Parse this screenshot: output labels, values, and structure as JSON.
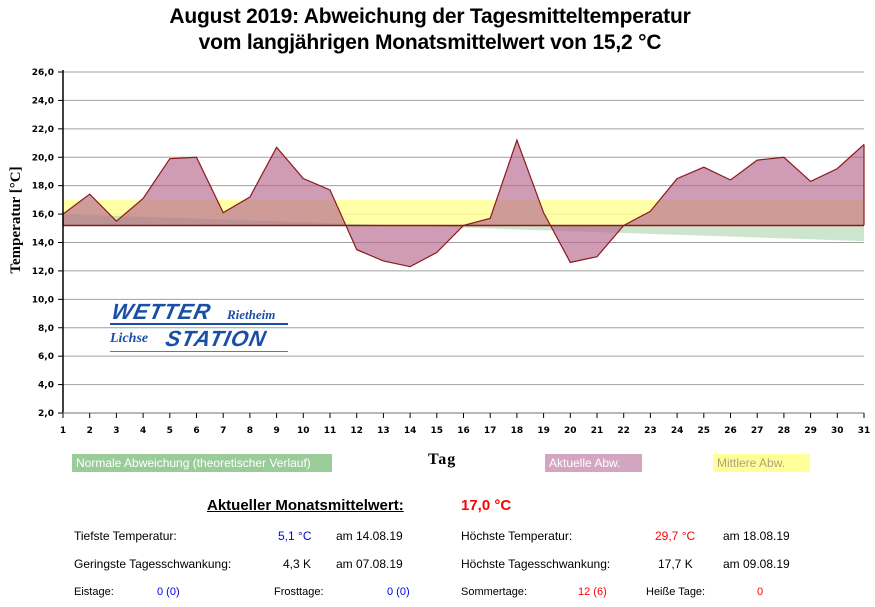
{
  "chart_data": {
    "type": "area",
    "title": "August 2019: Abweichung der Tagesmitteltemperatur",
    "subtitle": "vom langjährigen Monatsmittelwert von 15,2 °C",
    "xlabel": "Tag",
    "ylabel": "Temperatur [°C]",
    "ylim": [
      2.0,
      26.0
    ],
    "xlim": [
      1,
      31
    ],
    "grid": true,
    "baseline": 15.2,
    "y_ticks": [
      "2,0",
      "4,0",
      "6,0",
      "8,0",
      "10,0",
      "12,0",
      "14,0",
      "16,0",
      "18,0",
      "20,0",
      "22,0",
      "24,0",
      "26,0"
    ],
    "y_tick_values": [
      2,
      4,
      6,
      8,
      10,
      12,
      14,
      16,
      18,
      20,
      22,
      24,
      26
    ],
    "x": [
      1,
      2,
      3,
      4,
      5,
      6,
      7,
      8,
      9,
      10,
      11,
      12,
      13,
      14,
      15,
      16,
      17,
      18,
      19,
      20,
      21,
      22,
      23,
      24,
      25,
      26,
      27,
      28,
      29,
      30,
      31
    ],
    "series": [
      {
        "name": "Aktuelle Abw.",
        "color": "#c98fab",
        "line_color": "#8b1a1a",
        "values": [
          16.0,
          17.4,
          15.5,
          17.1,
          19.9,
          20.0,
          16.1,
          17.2,
          20.7,
          18.5,
          17.7,
          13.5,
          12.7,
          12.3,
          13.3,
          15.2,
          15.7,
          21.2,
          16.1,
          12.6,
          13.0,
          15.2,
          16.2,
          18.5,
          19.3,
          18.4,
          19.8,
          20.0,
          18.3,
          19.2,
          20.9
        ]
      },
      {
        "name": "Normale Abweichung (theoretischer Verlauf)",
        "color": "#99cc99",
        "values_start": 16.0,
        "values_end": 14.1
      },
      {
        "name": "Mittlere Abw.",
        "color": "#ffff99",
        "value": 17.0
      }
    ],
    "legend": [
      {
        "label": "Normale Abweichung (theoretischer Verlauf)",
        "color": "#99cc99"
      },
      {
        "label": "Aktuelle Abw.",
        "color": "#d4a5c0"
      },
      {
        "label": "Mittlere Abw.",
        "color": "#ffff99"
      }
    ],
    "legend_placement": "bottom"
  },
  "logo": {
    "line1": "WETTER",
    "line1_suffix": "Rietheim",
    "line2_prefix": "Lichse",
    "line2": "STATION"
  },
  "stats": {
    "heading": "Aktueller Monatsmittelwert:",
    "average": "17,0 °C",
    "rows": [
      {
        "label": "Tiefste Temperatur:",
        "value": "5,1 °C",
        "date": "am 14.08.19"
      },
      {
        "label": "Geringste Tagesschwankung:",
        "value": "4,3 K",
        "date": "am 07.08.19"
      },
      {
        "label": "Höchste Temperatur:",
        "value": "29,7 °C",
        "date": "am 18.08.19"
      },
      {
        "label": "Höchste Tagesschwankung:",
        "value": "17,7 K",
        "date": "am 09.08.19"
      }
    ],
    "days": [
      {
        "label": "Eistage:",
        "value": "0 (0)"
      },
      {
        "label": "Frosttage:",
        "value": "0 (0)"
      },
      {
        "label": "Sommertage:",
        "value": "12 (6)"
      },
      {
        "label": "Heiße Tage:",
        "value": "0"
      }
    ]
  }
}
